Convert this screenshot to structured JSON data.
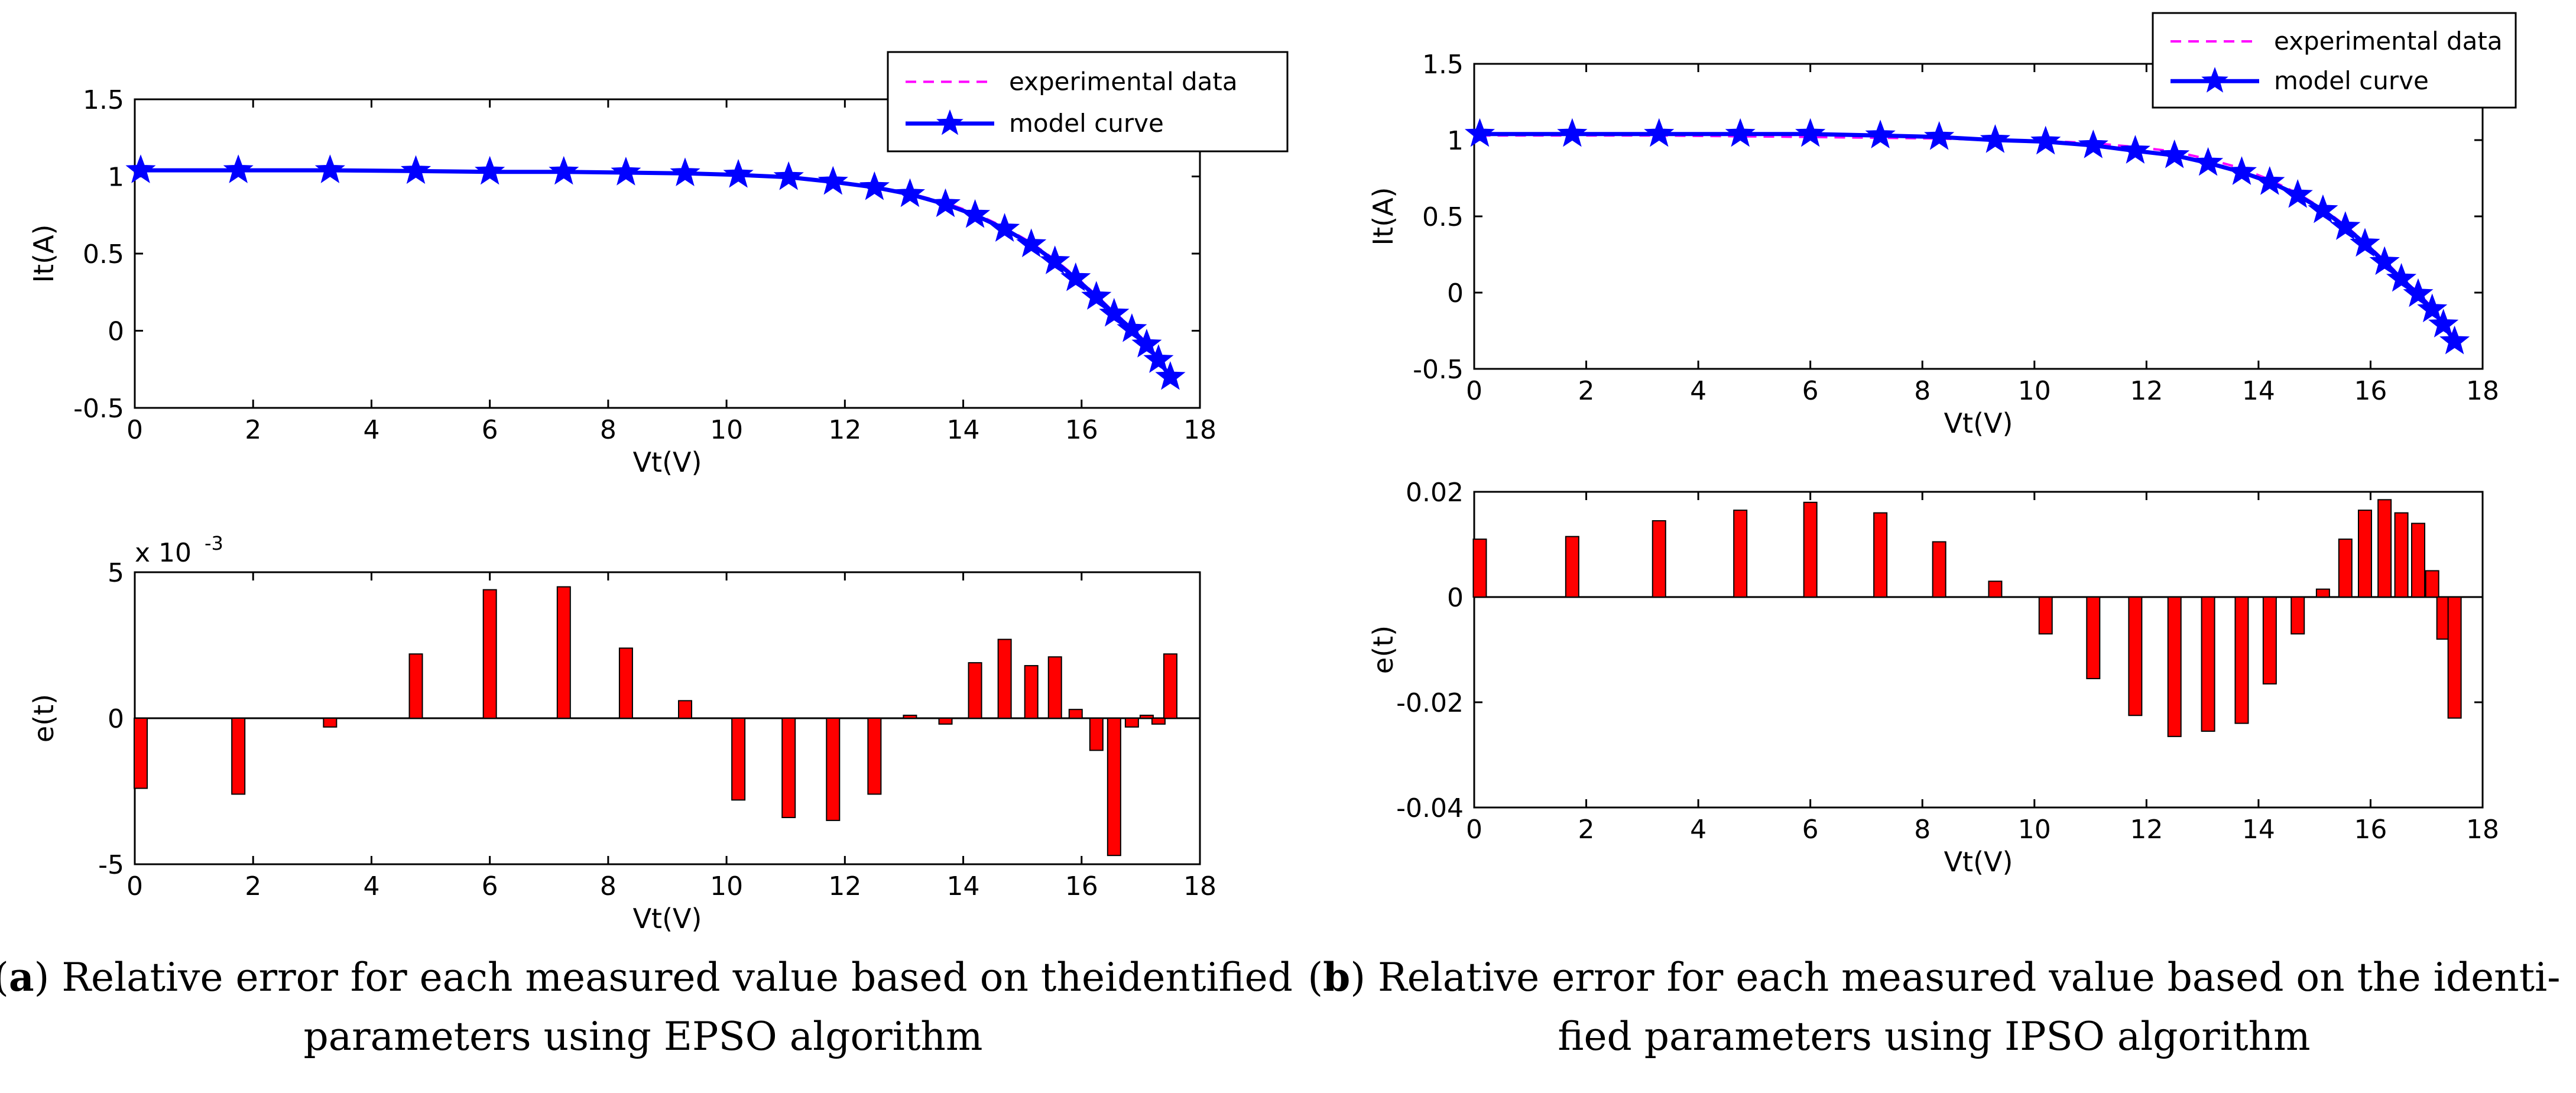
{
  "chart_data": [
    {
      "id": "a-top",
      "type": "line",
      "x": [
        0.1,
        1.75,
        3.3,
        4.75,
        6.0,
        7.25,
        8.3,
        9.3,
        10.2,
        11.05,
        11.8,
        12.5,
        13.1,
        13.7,
        14.2,
        14.7,
        15.15,
        15.55,
        15.9,
        16.25,
        16.55,
        16.85,
        17.1,
        17.3,
        17.5
      ],
      "series": [
        {
          "name": "experimental data",
          "color": "#ff00ff",
          "style": "dashed",
          "values": [
            1.04,
            1.04,
            1.04,
            1.035,
            1.03,
            1.03,
            1.025,
            1.02,
            1.01,
            0.995,
            0.97,
            0.935,
            0.89,
            0.83,
            0.76,
            0.67,
            0.57,
            0.46,
            0.35,
            0.23,
            0.12,
            0.02,
            -0.08,
            -0.18,
            -0.3
          ]
        },
        {
          "name": "model curve",
          "color": "#0000ff",
          "style": "solid-star",
          "values": [
            1.04,
            1.04,
            1.04,
            1.035,
            1.03,
            1.03,
            1.025,
            1.02,
            1.01,
            0.995,
            0.965,
            0.93,
            0.885,
            0.82,
            0.75,
            0.66,
            0.56,
            0.45,
            0.34,
            0.22,
            0.11,
            0.01,
            -0.09,
            -0.19,
            -0.3
          ]
        }
      ],
      "xlabel": "Vt(V)",
      "ylabel": "It(A)",
      "xlim": [
        0,
        18
      ],
      "ylim": [
        -0.5,
        1.5
      ],
      "xticks": [
        "0",
        "2",
        "4",
        "6",
        "8",
        "10",
        "12",
        "14",
        "16",
        "18"
      ],
      "yticks": [
        "-0.5",
        "0",
        "0.5",
        "1",
        "1.5"
      ],
      "legend": [
        "experimental data",
        "model curve"
      ],
      "legend_position": "top-right"
    },
    {
      "id": "a-bottom",
      "type": "bar",
      "x": [
        0.1,
        1.75,
        3.3,
        4.75,
        6.0,
        7.25,
        8.3,
        9.3,
        10.2,
        11.05,
        11.8,
        12.5,
        13.1,
        13.7,
        14.2,
        14.7,
        15.15,
        15.55,
        15.9,
        16.25,
        16.55,
        16.85,
        17.1,
        17.3,
        17.5
      ],
      "values": [
        -0.0024,
        -0.0026,
        -0.0003,
        0.0022,
        0.0044,
        0.0045,
        0.0024,
        0.0006,
        -0.0028,
        -0.0034,
        -0.0035,
        -0.0026,
        0.0001,
        -0.0002,
        0.0019,
        0.0027,
        0.0018,
        0.0021,
        0.0003,
        -0.0011,
        -0.0047,
        -0.0003,
        0.0001,
        -0.0002,
        0.0022
      ],
      "color": "#ff0000",
      "xlabel": "Vt(V)",
      "ylabel": "e(t)",
      "xlim": [
        0,
        18
      ],
      "ylim": [
        -0.005,
        0.005
      ],
      "xticks": [
        "0",
        "2",
        "4",
        "6",
        "8",
        "10",
        "12",
        "14",
        "16",
        "18"
      ],
      "yticks": [
        "-5",
        "0",
        "5"
      ],
      "y_exponent_label": "x 10",
      "y_exponent_power": "-3"
    },
    {
      "id": "b-top",
      "type": "line",
      "x": [
        0.1,
        1.75,
        3.3,
        4.75,
        6.0,
        7.25,
        8.3,
        9.3,
        10.2,
        11.05,
        11.8,
        12.5,
        13.1,
        13.7,
        14.2,
        14.7,
        15.15,
        15.55,
        15.9,
        16.25,
        16.55,
        16.85,
        17.1,
        17.3,
        17.5
      ],
      "series": [
        {
          "name": "experimental data",
          "color": "#ff00ff",
          "style": "dashed",
          "values": [
            1.03,
            1.03,
            1.03,
            1.025,
            1.02,
            1.015,
            1.01,
            1.0,
            0.995,
            0.98,
            0.955,
            0.925,
            0.875,
            0.815,
            0.74,
            0.65,
            0.55,
            0.44,
            0.33,
            0.21,
            0.1,
            0.0,
            -0.1,
            -0.2,
            -0.3
          ]
        },
        {
          "name": "model curve",
          "color": "#0000ff",
          "style": "solid-star",
          "values": [
            1.04,
            1.04,
            1.04,
            1.04,
            1.04,
            1.03,
            1.02,
            1.0,
            0.99,
            0.965,
            0.93,
            0.9,
            0.85,
            0.79,
            0.725,
            0.64,
            0.54,
            0.43,
            0.32,
            0.2,
            0.09,
            -0.01,
            -0.11,
            -0.21,
            -0.32
          ]
        }
      ],
      "xlabel": "Vt(V)",
      "ylabel": "It(A)",
      "xlim": [
        0,
        18
      ],
      "ylim": [
        -0.5,
        1.5
      ],
      "xticks": [
        "0",
        "2",
        "4",
        "6",
        "8",
        "10",
        "12",
        "14",
        "16",
        "18"
      ],
      "yticks": [
        "-0.5",
        "0",
        "0.5",
        "1",
        "1.5"
      ],
      "legend": [
        "experimental data",
        "model curve"
      ],
      "legend_position": "top-right"
    },
    {
      "id": "b-bottom",
      "type": "bar",
      "x": [
        0.1,
        1.75,
        3.3,
        4.75,
        6.0,
        7.25,
        8.3,
        9.3,
        10.2,
        11.05,
        11.8,
        12.5,
        13.1,
        13.7,
        14.2,
        14.7,
        15.15,
        15.55,
        15.9,
        16.25,
        16.55,
        16.85,
        17.1,
        17.3,
        17.5
      ],
      "values": [
        0.011,
        0.0115,
        0.0145,
        0.0165,
        0.018,
        0.016,
        0.0105,
        0.003,
        -0.007,
        -0.0155,
        -0.0225,
        -0.0265,
        -0.0255,
        -0.024,
        -0.0165,
        -0.007,
        0.0015,
        0.011,
        0.0165,
        0.0185,
        0.016,
        0.014,
        0.005,
        -0.008,
        -0.023
      ],
      "color": "#ff0000",
      "xlabel": "Vt(V)",
      "ylabel": "e(t)",
      "xlim": [
        0,
        18
      ],
      "ylim": [
        -0.04,
        0.02
      ],
      "xticks": [
        "0",
        "2",
        "4",
        "6",
        "8",
        "10",
        "12",
        "14",
        "16",
        "18"
      ],
      "yticks": [
        "-0.04",
        "-0.02",
        "0",
        "0.02"
      ]
    }
  ],
  "captions": {
    "a": {
      "prefix_open": "(",
      "label": "a",
      "prefix_close": ")",
      "line1": " Relative error for each measured value based on theidentified",
      "line2": "parameters using EPSO algorithm"
    },
    "b": {
      "prefix_open": "(",
      "label": "b",
      "prefix_close": ")",
      "line1": " Relative error for each measured value based on the identi-",
      "line2": "fied parameters using IPSO algorithm"
    }
  }
}
